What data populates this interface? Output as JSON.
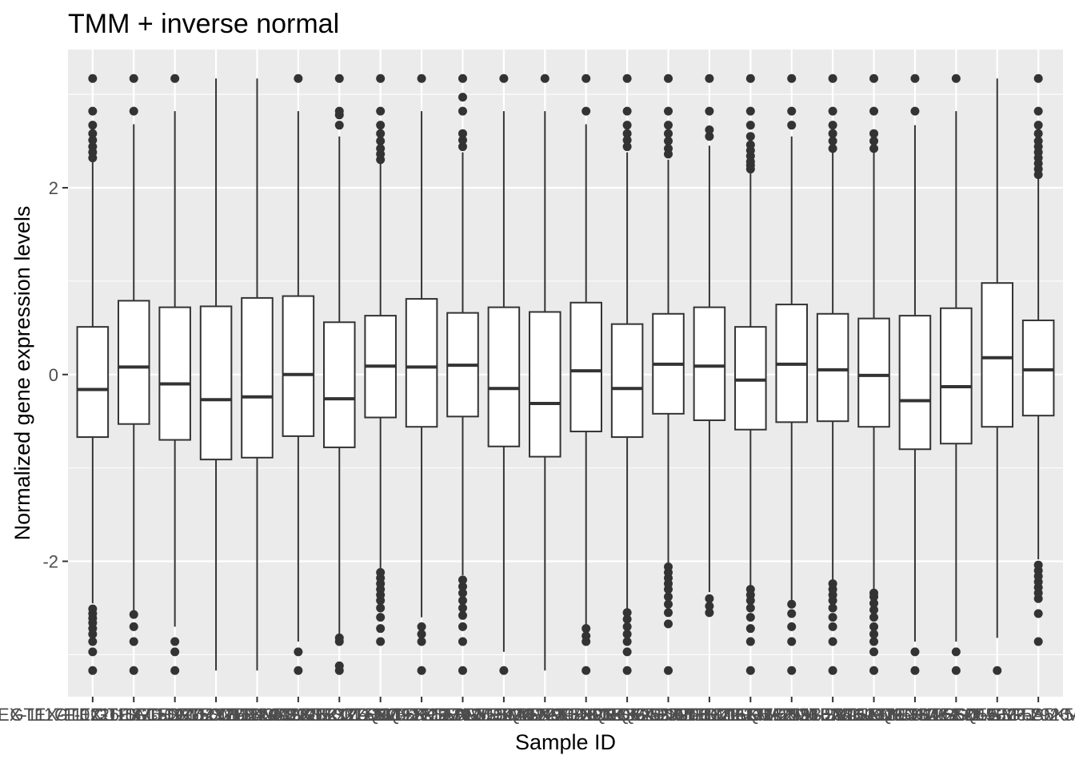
{
  "chart_data": {
    "type": "boxplot",
    "title": "TMM + inverse normal",
    "xlabel": "Sample ID",
    "ylabel": "Normalized gene expression levels",
    "ylim": [
      -3.45,
      3.48
    ],
    "yticks": [
      -2,
      0,
      2
    ],
    "grid": true,
    "legend": "none",
    "colors": {
      "panel_bg": "#ebebeb",
      "grid": "#ffffff",
      "box_fill": "#ffffff",
      "box_line": "#333333",
      "outlier": "#333333",
      "tick": "#333333",
      "tick_label": "#4d4d4d"
    },
    "samples": [
      {
        "label": "GTEX-1117F-0226-SM-5GZZ7",
        "lower_whisker": -2.45,
        "q1": -0.67,
        "median": -0.16,
        "q3": 0.51,
        "upper_whisker": 2.28,
        "outliers": [
          -3.17,
          -2.97,
          -2.86,
          -2.78,
          -2.72,
          -2.66,
          -2.61,
          -2.56,
          -2.51,
          2.32,
          2.38,
          2.44,
          2.51,
          2.58,
          2.67,
          2.82,
          3.17
        ]
      },
      {
        "label": "GTEX-111CU-1826-SM-5GZYN",
        "lower_whisker": -2.55,
        "q1": -0.53,
        "median": 0.08,
        "q3": 0.79,
        "upper_whisker": 2.68,
        "outliers": [
          -3.17,
          -2.86,
          -2.7,
          -2.57,
          2.82,
          3.17
        ]
      },
      {
        "label": "GTEX-111FC-0226-SM-5N9B8",
        "lower_whisker": -2.7,
        "q1": -0.7,
        "median": -0.1,
        "q3": 0.72,
        "upper_whisker": 2.82,
        "outliers": [
          -3.17,
          -2.97,
          -2.86,
          3.17
        ]
      },
      {
        "label": "GTEX-111VG-2326-SM-5N9BK",
        "lower_whisker": -3.17,
        "q1": -0.91,
        "median": -0.27,
        "q3": 0.73,
        "upper_whisker": 3.17,
        "outliers": []
      },
      {
        "label": "GTEX-111YS-2426-SM-5GZZQ",
        "lower_whisker": -3.17,
        "q1": -0.89,
        "median": -0.24,
        "q3": 0.82,
        "upper_whisker": 3.17,
        "outliers": []
      },
      {
        "label": "GTEX-1122O-2026-SM-5NQ91",
        "lower_whisker": -2.86,
        "q1": -0.66,
        "median": 0.0,
        "q3": 0.84,
        "upper_whisker": 2.82,
        "outliers": [
          -3.17,
          -2.97,
          3.17
        ]
      },
      {
        "label": "GTEX-1128S-2126-SM-5H12U",
        "lower_whisker": -2.78,
        "q1": -0.78,
        "median": -0.26,
        "q3": 0.56,
        "upper_whisker": 2.55,
        "outliers": [
          -3.17,
          -3.12,
          -2.86,
          -2.82,
          2.67,
          2.78,
          2.82,
          3.17
        ]
      },
      {
        "label": "GTEX-113IC-0226-SM-5HL5C",
        "lower_whisker": -2.08,
        "q1": -0.46,
        "median": 0.09,
        "q3": 0.63,
        "upper_whisker": 2.27,
        "outliers": [
          -2.86,
          -2.72,
          -2.6,
          -2.5,
          -2.42,
          -2.36,
          -2.3,
          -2.24,
          -2.18,
          -2.12,
          2.3,
          2.36,
          2.42,
          2.5,
          2.58,
          2.67,
          2.82,
          3.17
        ]
      },
      {
        "label": "GTEX-113JC-2726-SM-5EQ4R",
        "lower_whisker": -2.6,
        "q1": -0.56,
        "median": 0.08,
        "q3": 0.81,
        "upper_whisker": 2.82,
        "outliers": [
          -3.17,
          -2.86,
          -2.78,
          -2.7,
          3.17
        ]
      },
      {
        "label": "GTEX-117XS-3026-SM-5N9CA",
        "lower_whisker": -2.15,
        "q1": -0.45,
        "median": 0.1,
        "q3": 0.66,
        "upper_whisker": 2.38,
        "outliers": [
          -3.17,
          -2.86,
          -2.7,
          -2.58,
          -2.5,
          -2.42,
          -2.34,
          -2.27,
          -2.2,
          2.44,
          2.51,
          2.58,
          2.82,
          2.97,
          3.17
        ]
      },
      {
        "label": "GTEX-117YW-3026-SM-5NQ8Q",
        "lower_whisker": -2.97,
        "q1": -0.77,
        "median": -0.15,
        "q3": 0.72,
        "upper_whisker": 2.82,
        "outliers": [
          -3.17,
          3.17
        ]
      },
      {
        "label": "GTEX-1192W-2726-SM-5Q5AB",
        "lower_whisker": -3.17,
        "q1": -0.88,
        "median": -0.31,
        "q3": 0.67,
        "upper_whisker": 2.82,
        "outliers": [
          3.17
        ]
      },
      {
        "label": "GTEX-1192X-3126-SM-5N9BH",
        "lower_whisker": -2.68,
        "q1": -0.61,
        "median": 0.04,
        "q3": 0.77,
        "upper_whisker": 2.68,
        "outliers": [
          -3.17,
          -2.86,
          -2.8,
          -2.72,
          2.82,
          3.17
        ]
      },
      {
        "label": "GTEX-11DXW-0626-SM-5H12R",
        "lower_whisker": -2.52,
        "q1": -0.67,
        "median": -0.15,
        "q3": 0.54,
        "upper_whisker": 2.38,
        "outliers": [
          -3.17,
          -2.97,
          -2.86,
          -2.78,
          -2.7,
          -2.62,
          -2.55,
          2.44,
          2.51,
          2.58,
          2.67,
          2.82,
          3.17
        ]
      },
      {
        "label": "GTEX-11DXX-2726-SM-5Q5A2",
        "lower_whisker": -2.02,
        "q1": -0.42,
        "median": 0.11,
        "q3": 0.65,
        "upper_whisker": 2.3,
        "outliers": [
          -3.17,
          -2.67,
          -2.55,
          -2.46,
          -2.38,
          -2.3,
          -2.24,
          -2.18,
          -2.12,
          -2.06,
          2.36,
          2.42,
          2.5,
          2.58,
          2.67,
          2.82,
          3.17
        ]
      },
      {
        "label": "GTEX-11DXY-3126-SM-5N9BJ",
        "lower_whisker": -2.33,
        "q1": -0.49,
        "median": 0.09,
        "q3": 0.72,
        "upper_whisker": 2.45,
        "outliers": [
          -2.55,
          -2.48,
          -2.4,
          2.55,
          2.62,
          2.82,
          3.17
        ]
      },
      {
        "label": "GTEX-11DZ1-2726-SM-5A5KI",
        "lower_whisker": -2.26,
        "q1": -0.59,
        "median": -0.06,
        "q3": 0.51,
        "upper_whisker": 2.18,
        "outliers": [
          -3.17,
          -2.86,
          -2.72,
          -2.6,
          -2.5,
          -2.42,
          -2.36,
          -2.3,
          2.2,
          2.24,
          2.28,
          2.34,
          2.4,
          2.46,
          2.55,
          2.67,
          2.82,
          3.17
        ]
      },
      {
        "label": "GTEX-11EI6-2126-SM-5A5KJ",
        "lower_whisker": -2.42,
        "q1": -0.51,
        "median": 0.11,
        "q3": 0.75,
        "upper_whisker": 2.55,
        "outliers": [
          -3.17,
          -2.86,
          -2.7,
          -2.56,
          -2.46,
          2.67,
          2.82,
          3.17
        ]
      },
      {
        "label": "GTEX-11EM3-2326-SM-5H12B",
        "lower_whisker": -2.2,
        "q1": -0.5,
        "median": 0.05,
        "q3": 0.65,
        "upper_whisker": 2.38,
        "outliers": [
          -3.17,
          -2.86,
          -2.7,
          -2.6,
          -2.5,
          -2.42,
          -2.36,
          -2.3,
          -2.24,
          2.42,
          2.5,
          2.58,
          2.67,
          2.82,
          3.17
        ]
      },
      {
        "label": "GTEX-11EMC-2826-SM-5EQ5A",
        "lower_whisker": -2.3,
        "q1": -0.56,
        "median": -0.01,
        "q3": 0.6,
        "upper_whisker": 2.38,
        "outliers": [
          -3.17,
          -2.97,
          -2.86,
          -2.78,
          -2.7,
          -2.6,
          -2.52,
          -2.45,
          -2.38,
          -2.34,
          2.42,
          2.5,
          2.58,
          2.82,
          3.17
        ]
      },
      {
        "label": "GTEX-11EQ9-2526-SM-5EGIJ",
        "lower_whisker": -2.86,
        "q1": -0.8,
        "median": -0.28,
        "q3": 0.63,
        "upper_whisker": 2.67,
        "outliers": [
          -3.17,
          -2.97,
          2.82,
          3.17
        ]
      },
      {
        "label": "GTEX-11GS4-2626-SM-5A5KM",
        "lower_whisker": -2.86,
        "q1": -0.74,
        "median": -0.13,
        "q3": 0.71,
        "upper_whisker": 2.82,
        "outliers": [
          -3.17,
          -2.97,
          3.17
        ]
      },
      {
        "label": "GTEX-11GSO-2326-SM-5GZXM",
        "lower_whisker": -2.82,
        "q1": -0.56,
        "median": 0.18,
        "q3": 0.98,
        "upper_whisker": 3.17,
        "outliers": [
          -3.17
        ]
      },
      {
        "label": "GTEX-11GSP-2926-SM-5LUA6",
        "lower_whisker": -1.98,
        "q1": -0.44,
        "median": 0.05,
        "q3": 0.58,
        "upper_whisker": 2.1,
        "outliers": [
          -2.86,
          -2.56,
          -2.4,
          -2.34,
          -2.28,
          -2.22,
          -2.16,
          -2.1,
          -2.04,
          2.14,
          2.2,
          2.26,
          2.32,
          2.38,
          2.44,
          2.5,
          2.58,
          2.67,
          2.82,
          3.17
        ]
      }
    ]
  }
}
